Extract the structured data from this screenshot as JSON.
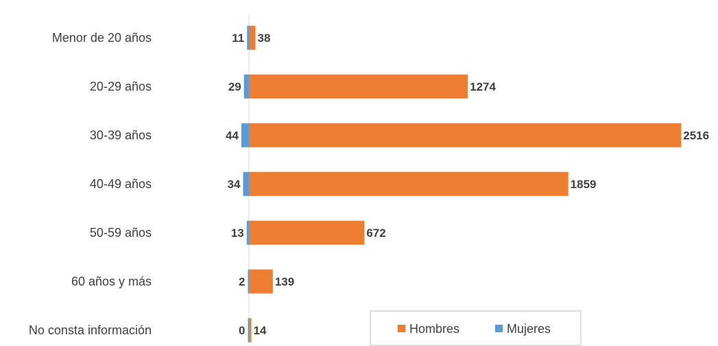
{
  "chart_data": {
    "type": "bar",
    "orientation": "horizontal",
    "categories": [
      "Menor de 20 años",
      "20-29 años",
      "30-39 años",
      "40-49 años",
      "50-59 años",
      "60 años y más",
      "No consta información"
    ],
    "series": [
      {
        "name": "Hombres",
        "values": [
          38,
          1274,
          2516,
          1859,
          672,
          139,
          14
        ],
        "color": "#ED7D31"
      },
      {
        "name": "Mujeres",
        "values": [
          11,
          29,
          44,
          34,
          13,
          2,
          0
        ],
        "color": "#5B9BD5"
      }
    ],
    "title": "",
    "xlabel": "",
    "ylabel": "",
    "grid": false,
    "legend_position": "bottom-right"
  }
}
